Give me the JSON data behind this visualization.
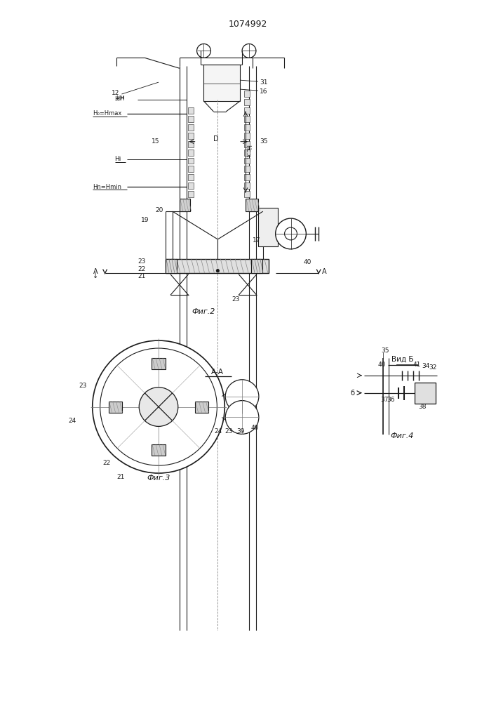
{
  "bg_color": "#ffffff",
  "line_color": "#1a1a1a",
  "labels": {
    "patent": "1074992",
    "fig2": "Фиг.2",
    "fig3": "Фиг.3",
    "fig4": "Фиг.4",
    "vidB": "Вид Б"
  }
}
